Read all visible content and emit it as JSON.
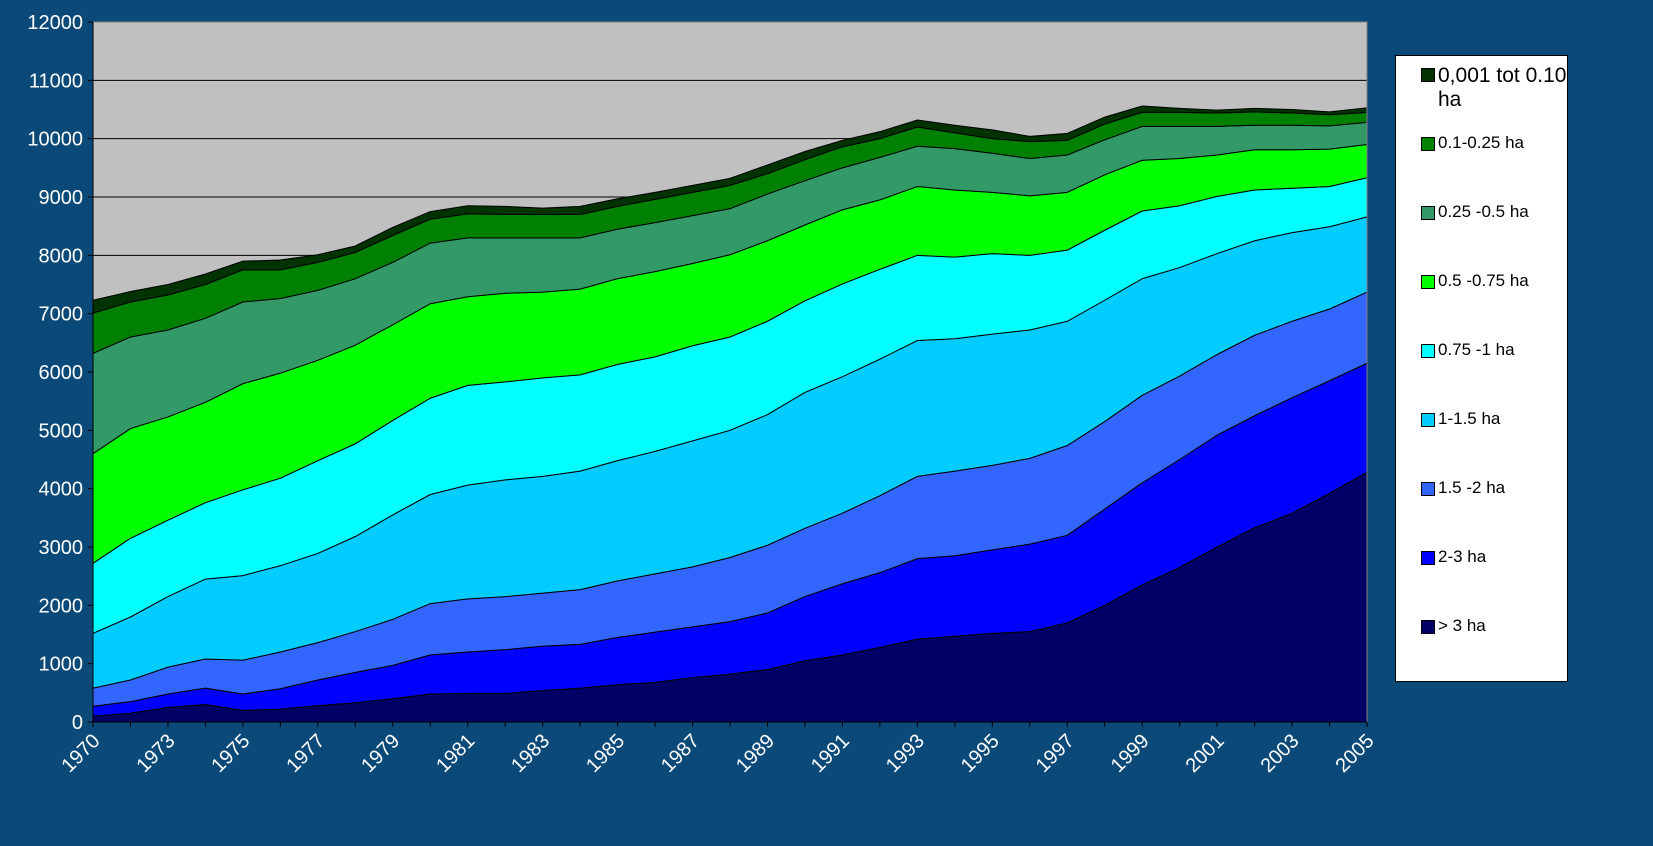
{
  "chart_data": {
    "type": "stacked_area",
    "categories": [
      "1970",
      null,
      "1973",
      null,
      "1975",
      null,
      "1977",
      null,
      "1979",
      null,
      "1981",
      null,
      "1983",
      null,
      "1985",
      null,
      "1987",
      null,
      "1989",
      null,
      "1991",
      null,
      "1993",
      null,
      "1995",
      null,
      "1997",
      null,
      "1999",
      null,
      "2001",
      null,
      "2003",
      null,
      "2005"
    ],
    "ylim": [
      0,
      12000
    ],
    "yticks": [
      0,
      1000,
      2000,
      3000,
      4000,
      5000,
      6000,
      7000,
      8000,
      9000,
      10000,
      11000,
      12000
    ],
    "grid": true,
    "legend": "right",
    "series": [
      {
        "name": "> 3 ha",
        "color": "#000066",
        "values": [
          100,
          150,
          250,
          300,
          200,
          220,
          280,
          330,
          400,
          480,
          490,
          490,
          540,
          580,
          640,
          680,
          760,
          820,
          900,
          1050,
          1150,
          1280,
          1420,
          1470,
          1520,
          1550,
          1700,
          2000,
          2350,
          2650,
          3000,
          3330,
          3580,
          3920,
          4280
        ]
      },
      {
        "name": "2-3 ha",
        "color": "#0000ff",
        "values": [
          170,
          200,
          230,
          280,
          280,
          350,
          440,
          520,
          570,
          670,
          710,
          750,
          760,
          750,
          810,
          860,
          870,
          900,
          970,
          1100,
          1220,
          1280,
          1380,
          1380,
          1430,
          1500,
          1500,
          1650,
          1750,
          1850,
          1920,
          1920,
          1980,
          1930,
          1870
        ]
      },
      {
        "name": "1.5 -2 ha",
        "color": "#3366ff",
        "values": [
          310,
          370,
          460,
          500,
          580,
          630,
          640,
          700,
          790,
          880,
          910,
          910,
          910,
          940,
          970,
          1000,
          1030,
          1100,
          1160,
          1170,
          1210,
          1320,
          1410,
          1450,
          1450,
          1470,
          1540,
          1500,
          1500,
          1430,
          1380,
          1380,
          1310,
          1230,
          1220
        ]
      },
      {
        "name": "1-1.5 ha",
        "color": "#00ccff",
        "values": [
          940,
          1080,
          1210,
          1370,
          1450,
          1480,
          1530,
          1630,
          1790,
          1870,
          1950,
          2000,
          2000,
          2030,
          2060,
          2100,
          2160,
          2180,
          2240,
          2330,
          2340,
          2340,
          2330,
          2270,
          2250,
          2200,
          2130,
          2080,
          2000,
          1860,
          1730,
          1620,
          1520,
          1410,
          1290
        ]
      },
      {
        "name": "0.75 -1 ha",
        "color": "#00ffff",
        "values": [
          1200,
          1350,
          1310,
          1310,
          1470,
          1500,
          1590,
          1590,
          1620,
          1650,
          1710,
          1680,
          1690,
          1650,
          1650,
          1620,
          1630,
          1600,
          1600,
          1570,
          1590,
          1540,
          1460,
          1400,
          1380,
          1280,
          1220,
          1200,
          1160,
          1060,
          980,
          870,
          760,
          690,
          670
        ]
      },
      {
        "name": "0.5 -0.75 ha",
        "color": "#00ff00",
        "values": [
          1880,
          1880,
          1770,
          1720,
          1820,
          1800,
          1720,
          1690,
          1640,
          1620,
          1520,
          1520,
          1470,
          1470,
          1470,
          1460,
          1410,
          1410,
          1380,
          1300,
          1270,
          1190,
          1180,
          1150,
          1050,
          1020,
          990,
          950,
          870,
          810,
          710,
          690,
          660,
          640,
          570
        ]
      },
      {
        "name": "0.25 -0.5 ha",
        "color": "#339966",
        "values": [
          1720,
          1570,
          1490,
          1440,
          1400,
          1280,
          1200,
          1140,
          1070,
          1040,
          1010,
          950,
          930,
          880,
          850,
          840,
          820,
          790,
          800,
          760,
          720,
          730,
          690,
          710,
          670,
          640,
          640,
          600,
          580,
          550,
          490,
          420,
          420,
          400,
          380
        ]
      },
      {
        "name": "0.1-0.25 ha",
        "color": "#008000",
        "values": [
          690,
          600,
          600,
          580,
          550,
          490,
          480,
          450,
          460,
          410,
          410,
          400,
          400,
          400,
          390,
          400,
          400,
          400,
          350,
          360,
          360,
          320,
          330,
          270,
          250,
          290,
          250,
          270,
          240,
          240,
          230,
          230,
          210,
          190,
          170
        ]
      },
      {
        "name": "0,001 tot 0.10 ha",
        "color": "#003300",
        "values": [
          220,
          180,
          180,
          180,
          150,
          170,
          130,
          110,
          140,
          130,
          140,
          140,
          110,
          140,
          130,
          120,
          120,
          120,
          150,
          140,
          110,
          120,
          120,
          130,
          150,
          90,
          120,
          120,
          110,
          70,
          50,
          60,
          60,
          50,
          80
        ]
      }
    ]
  }
}
